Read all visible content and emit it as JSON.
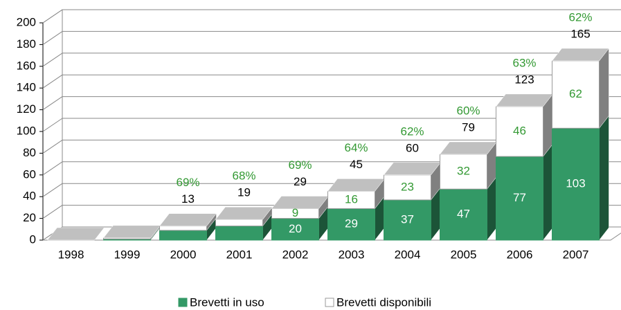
{
  "chart_data": {
    "type": "bar3d_stacked",
    "categories": [
      "1998",
      "1999",
      "2000",
      "2001",
      "2002",
      "2003",
      "2004",
      "2005",
      "2006",
      "2007"
    ],
    "series": [
      {
        "name": "Brevetti in uso",
        "color": "#339966",
        "label_color": "#ffffff",
        "values": [
          0,
          1,
          9,
          13,
          20,
          29,
          37,
          47,
          77,
          103
        ],
        "value_labels": [
          null,
          null,
          null,
          null,
          "20",
          "29",
          "37",
          "47",
          "77",
          "103"
        ]
      },
      {
        "name": "Brevetti disponibili",
        "color": "#ffffff",
        "label_color": "#339933",
        "values": [
          0,
          1,
          4,
          6,
          9,
          16,
          23,
          32,
          46,
          62
        ],
        "value_labels": [
          null,
          null,
          null,
          null,
          "9",
          "16",
          "23",
          "32",
          "46",
          "62"
        ]
      }
    ],
    "totals": [
      null,
      null,
      13,
      19,
      29,
      45,
      60,
      79,
      123,
      165
    ],
    "share_labels": [
      null,
      null,
      "69%",
      "68%",
      "69%",
      "64%",
      "62%",
      "60%",
      "63%",
      "62%"
    ],
    "share_color": "#339933",
    "ylim": [
      0,
      200
    ],
    "yticks": [
      0,
      20,
      40,
      60,
      80,
      100,
      120,
      140,
      160,
      180,
      200
    ],
    "grid": true,
    "legend": "bottom"
  }
}
